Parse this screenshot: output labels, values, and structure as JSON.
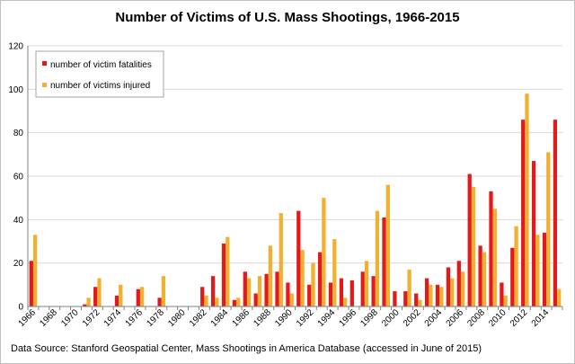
{
  "chart_data": {
    "type": "bar",
    "title": "Number of Victims of U.S. Mass Shootings, 1966-2015",
    "xlabel": "",
    "ylabel": "",
    "ylim": [
      0,
      120
    ],
    "yticks": [
      0,
      20,
      40,
      60,
      80,
      100,
      120
    ],
    "grid": true,
    "legend_position": "top-left",
    "x_tick_labels": [
      "1966",
      "1968",
      "1970",
      "1972",
      "1974",
      "1976",
      "1978",
      "1980",
      "1982",
      "1984",
      "1986",
      "1988",
      "1990",
      "1992",
      "1994",
      "1996",
      "1998",
      "2000",
      "2002",
      "2004",
      "2006",
      "2008",
      "2010",
      "2012",
      "2014"
    ],
    "categories": [
      "1966",
      "1967",
      "1968",
      "1969",
      "1970",
      "1971",
      "1972",
      "1973",
      "1974",
      "1975",
      "1976",
      "1977",
      "1978",
      "1979",
      "1980",
      "1981",
      "1982",
      "1983",
      "1984",
      "1985",
      "1986",
      "1987",
      "1988",
      "1989",
      "1990",
      "1991",
      "1992",
      "1993",
      "1994",
      "1995",
      "1996",
      "1997",
      "1998",
      "1999",
      "2000",
      "2001",
      "2002",
      "2003",
      "2004",
      "2005",
      "2006",
      "2007",
      "2008",
      "2009",
      "2010",
      "2011",
      "2012",
      "2013",
      "2014",
      "2015"
    ],
    "series": [
      {
        "name": "number of victim fatalities",
        "color": "#e31a1c",
        "values": [
          21,
          0,
          0,
          0,
          0,
          1,
          9,
          0,
          5,
          0,
          8,
          0,
          4,
          0,
          0,
          0,
          9,
          14,
          29,
          3,
          16,
          6,
          15,
          16,
          11,
          44,
          10,
          25,
          11,
          13,
          12,
          16,
          14,
          41,
          7,
          7,
          6,
          13,
          10,
          18,
          21,
          61,
          28,
          53,
          11,
          27,
          86,
          67,
          34,
          86
        ]
      },
      {
        "name": "number of victims injured",
        "color": "#f0b030",
        "values": [
          33,
          0,
          0,
          0,
          0,
          4,
          13,
          0,
          10,
          0,
          9,
          0,
          14,
          0,
          0,
          0,
          5,
          4,
          32,
          4,
          13,
          14,
          28,
          43,
          6,
          26,
          20,
          50,
          31,
          4,
          0,
          21,
          44,
          56,
          0,
          17,
          3,
          10,
          9,
          13,
          16,
          55,
          25,
          45,
          5,
          37,
          98,
          33,
          71,
          8
        ]
      }
    ]
  },
  "source_note": "Data Source: Stanford Geospatial Center, Mass Shootings in America Database (accessed in June of 2015)"
}
